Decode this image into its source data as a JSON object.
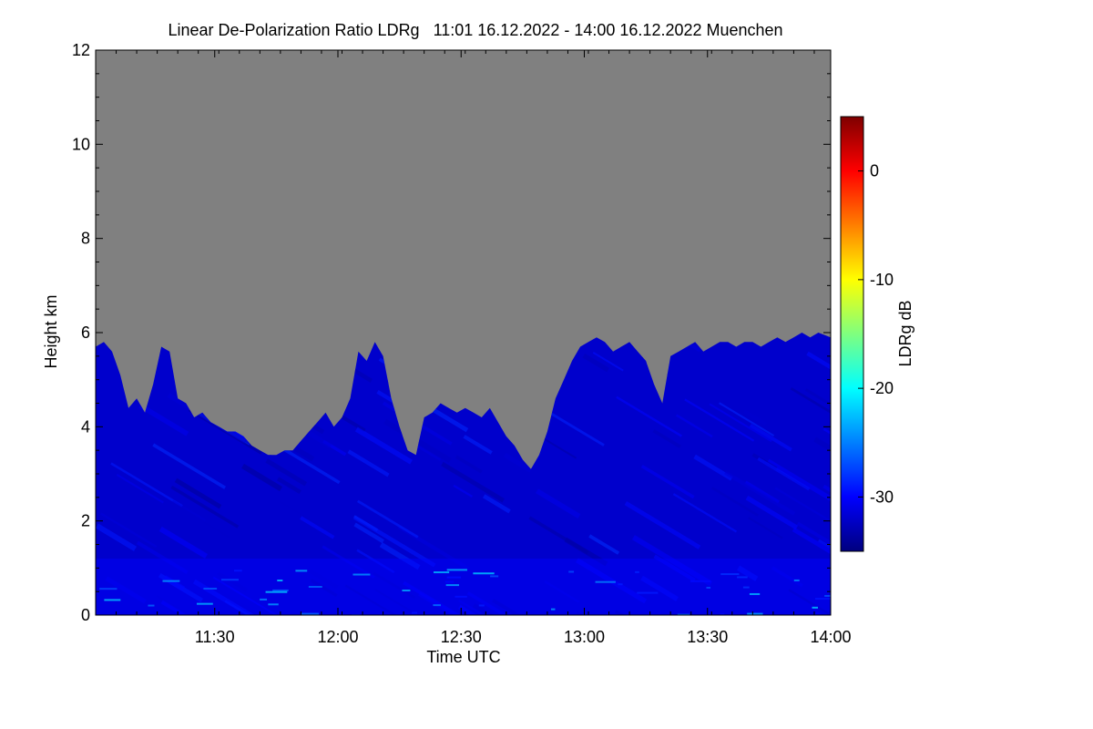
{
  "chart_data": {
    "type": "heatmap",
    "title": "Linear De-Polarization Ratio LDRg   11:01 16.12.2022 - 14:00 16.12.2022 Muenchen",
    "xlabel": "Time UTC",
    "ylabel": "Height km",
    "colorbar_label": "LDRg dB",
    "x_range": [
      "11:01",
      "14:00"
    ],
    "xlim_minutes_utc": [
      661,
      840
    ],
    "ylim": [
      0,
      12
    ],
    "x_ticks": [
      {
        "minute": 690,
        "label": "11:30"
      },
      {
        "minute": 720,
        "label": "12:00"
      },
      {
        "minute": 750,
        "label": "12:30"
      },
      {
        "minute": 780,
        "label": "13:00"
      },
      {
        "minute": 810,
        "label": "13:30"
      },
      {
        "minute": 840,
        "label": "14:00"
      }
    ],
    "y_ticks": [
      {
        "value": 0,
        "label": "0"
      },
      {
        "value": 2,
        "label": "2"
      },
      {
        "value": 4,
        "label": "4"
      },
      {
        "value": 6,
        "label": "6"
      },
      {
        "value": 8,
        "label": "8"
      },
      {
        "value": 10,
        "label": "10"
      },
      {
        "value": 12,
        "label": "12"
      }
    ],
    "colorbar_range": [
      -35,
      5
    ],
    "colorbar_ticks": [
      {
        "value": 0,
        "label": "0"
      },
      {
        "value": -10,
        "label": "-10"
      },
      {
        "value": -20,
        "label": "-20"
      },
      {
        "value": -30,
        "label": "-30"
      }
    ],
    "colormap": [
      "#00007f",
      "#0000ff",
      "#007fff",
      "#00ffff",
      "#7fff7f",
      "#ffff00",
      "#ff7f00",
      "#ff0000",
      "#7f0000"
    ],
    "no_signal_color": "#808080",
    "typical_value_db": -32,
    "signal_top_km": [
      [
        661,
        5.7
      ],
      [
        663,
        5.8
      ],
      [
        665,
        5.6
      ],
      [
        667,
        5.1
      ],
      [
        669,
        4.4
      ],
      [
        671,
        4.6
      ],
      [
        673,
        4.3
      ],
      [
        675,
        4.9
      ],
      [
        677,
        5.7
      ],
      [
        679,
        5.6
      ],
      [
        681,
        4.6
      ],
      [
        683,
        4.5
      ],
      [
        685,
        4.2
      ],
      [
        687,
        4.3
      ],
      [
        689,
        4.1
      ],
      [
        691,
        4.0
      ],
      [
        693,
        3.9
      ],
      [
        695,
        3.9
      ],
      [
        697,
        3.8
      ],
      [
        699,
        3.6
      ],
      [
        701,
        3.5
      ],
      [
        703,
        3.4
      ],
      [
        705,
        3.4
      ],
      [
        707,
        3.5
      ],
      [
        709,
        3.5
      ],
      [
        711,
        3.7
      ],
      [
        713,
        3.9
      ],
      [
        715,
        4.1
      ],
      [
        717,
        4.3
      ],
      [
        719,
        4.0
      ],
      [
        721,
        4.2
      ],
      [
        723,
        4.6
      ],
      [
        725,
        5.6
      ],
      [
        727,
        5.4
      ],
      [
        729,
        5.8
      ],
      [
        731,
        5.5
      ],
      [
        733,
        4.6
      ],
      [
        735,
        4.0
      ],
      [
        737,
        3.5
      ],
      [
        739,
        3.4
      ],
      [
        741,
        4.2
      ],
      [
        743,
        4.3
      ],
      [
        745,
        4.5
      ],
      [
        747,
        4.4
      ],
      [
        749,
        4.3
      ],
      [
        751,
        4.4
      ],
      [
        753,
        4.3
      ],
      [
        755,
        4.2
      ],
      [
        757,
        4.4
      ],
      [
        759,
        4.1
      ],
      [
        761,
        3.8
      ],
      [
        763,
        3.6
      ],
      [
        765,
        3.3
      ],
      [
        767,
        3.1
      ],
      [
        769,
        3.4
      ],
      [
        771,
        3.9
      ],
      [
        773,
        4.6
      ],
      [
        775,
        5.0
      ],
      [
        777,
        5.4
      ],
      [
        779,
        5.7
      ],
      [
        781,
        5.8
      ],
      [
        783,
        5.9
      ],
      [
        785,
        5.8
      ],
      [
        787,
        5.6
      ],
      [
        789,
        5.7
      ],
      [
        791,
        5.8
      ],
      [
        793,
        5.6
      ],
      [
        795,
        5.4
      ],
      [
        797,
        4.9
      ],
      [
        799,
        4.5
      ],
      [
        801,
        5.5
      ],
      [
        803,
        5.6
      ],
      [
        805,
        5.7
      ],
      [
        807,
        5.8
      ],
      [
        809,
        5.6
      ],
      [
        811,
        5.7
      ],
      [
        813,
        5.8
      ],
      [
        815,
        5.8
      ],
      [
        817,
        5.7
      ],
      [
        819,
        5.8
      ],
      [
        821,
        5.8
      ],
      [
        823,
        5.7
      ],
      [
        825,
        5.8
      ],
      [
        827,
        5.9
      ],
      [
        829,
        5.8
      ],
      [
        831,
        5.9
      ],
      [
        833,
        6.0
      ],
      [
        835,
        5.9
      ],
      [
        837,
        6.0
      ],
      [
        840,
        5.9
      ]
    ]
  }
}
